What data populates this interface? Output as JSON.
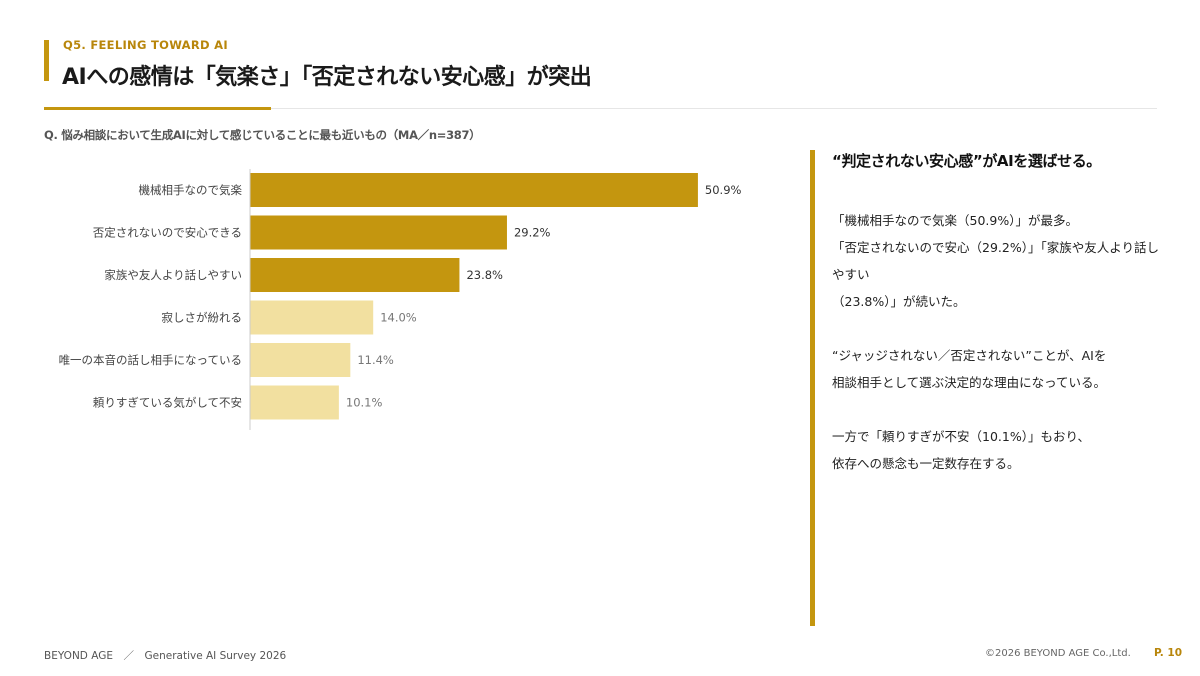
{
  "header": {
    "eyebrow": "Q5. FEELING TOWARD AI",
    "title": "AIへの感情は「気楽さ」「否定されない安心感」が突出"
  },
  "question": "Q. 悩み相談において生成AIに対して感じていることに最も近いもの（MA／n=387）",
  "chart_data": {
    "type": "bar",
    "orientation": "horizontal",
    "categories": [
      "機械相手なので気楽",
      "否定されないので安心できる",
      "家族や友人より話しやすい",
      "寂しさが紛れる",
      "唯一の本音の話し相手になっている",
      "頼りすぎている気がして不安"
    ],
    "values": [
      50.9,
      29.2,
      23.8,
      14.0,
      11.4,
      10.1
    ],
    "value_labels": [
      "50.9%",
      "29.2%",
      "23.8%",
      "14.0%",
      "11.4%",
      "10.1%"
    ],
    "unit": "%",
    "highlight_count": 3,
    "colors": {
      "highlight": "#c4960f",
      "muted": "#f2e0a0",
      "highlight_text": "#333333",
      "muted_text": "#777777",
      "axis": "#cccccc"
    },
    "grid": false,
    "legend": "none"
  },
  "panel": {
    "heading": "“判定されない安心感”がAIを選ばせる。",
    "paragraphs": [
      [
        "「機械相手なので気楽（50.9%）」が最多。",
        "「否定されないので安心（29.2%）」「家族や友人より話し",
        "やすい",
        "（23.8%）」が続いた。"
      ],
      [
        "“ジャッジされない／否定されない”ことが、AIを",
        "相談相手として選ぶ決定的な理由になっている。"
      ],
      [
        "一方で「頼りすぎが不安（10.1%）」もおり、",
        "依存への懸念も一定数存在する。"
      ]
    ]
  },
  "footer": {
    "left": "BEYOND AGE　／　Generative AI Survey 2026",
    "copyright": "©2026 BEYOND AGE Co.,Ltd.",
    "page": "P. 10"
  }
}
